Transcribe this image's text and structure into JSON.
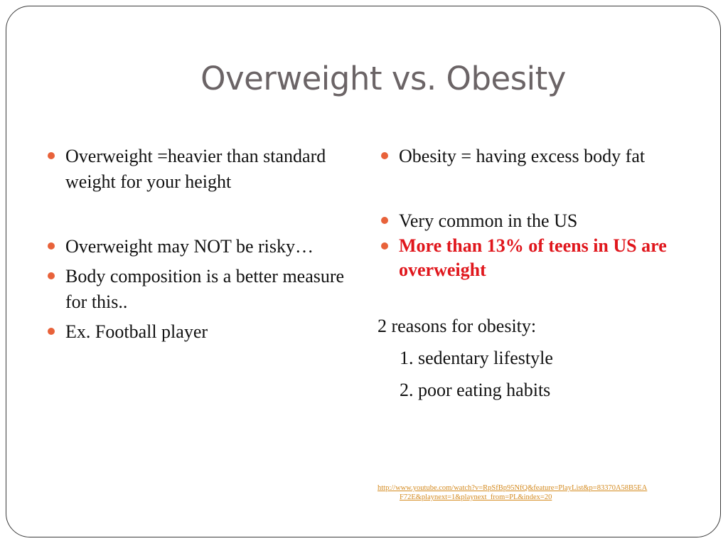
{
  "slide": {
    "title": "Overweight vs. Obesity"
  },
  "left_column": {
    "bullets": [
      "Overweight =heavier than standard weight for your height",
      "Overweight may NOT be risky…",
      "Body composition is a better measure for this..",
      "Ex. Football player"
    ]
  },
  "right_column": {
    "bullets": [
      "Obesity = having excess body fat",
      "Very common in the US",
      "More than 13% of teens in US are overweight"
    ],
    "highlight_color": "#e0161c",
    "reasons_heading": "2 reasons for obesity:",
    "reasons": [
      "1.  sedentary lifestyle",
      "2.  poor eating habits"
    ],
    "link_line1": "http://www.youtube.com/watch?v=RpSfBp95NfQ&feature=PlayList&p=83370A58B5EA",
    "link_line2": "F72E&playnext=1&playnext_from=PL&index=20"
  },
  "colors": {
    "bullet": "#e8623a",
    "title": "#6b6466",
    "link": "#d48a1f"
  }
}
